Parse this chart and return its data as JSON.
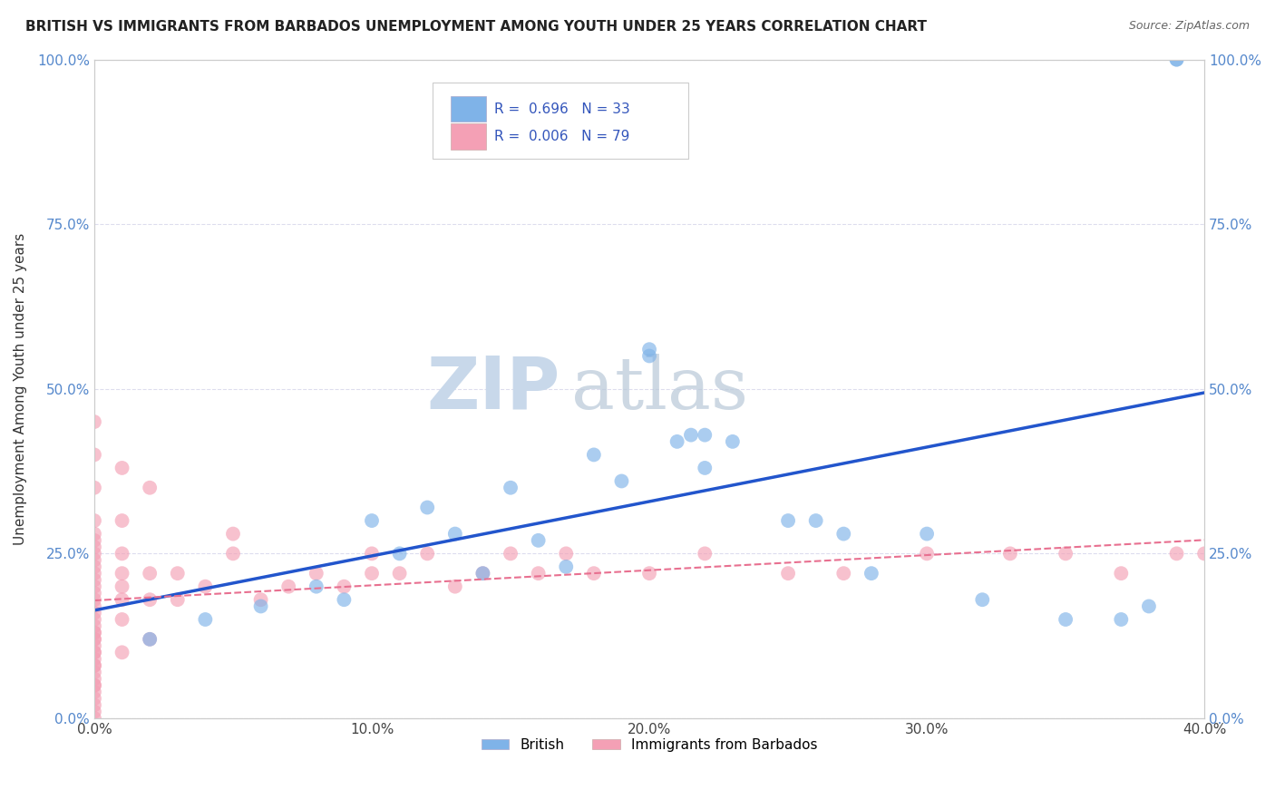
{
  "title": "BRITISH VS IMMIGRANTS FROM BARBADOS UNEMPLOYMENT AMONG YOUTH UNDER 25 YEARS CORRELATION CHART",
  "source": "Source: ZipAtlas.com",
  "ylabel": "Unemployment Among Youth under 25 years",
  "xlim": [
    0.0,
    0.4
  ],
  "ylim": [
    0.0,
    1.0
  ],
  "xtick_labels": [
    "0.0%",
    "10.0%",
    "20.0%",
    "30.0%",
    "40.0%"
  ],
  "xtick_values": [
    0.0,
    0.1,
    0.2,
    0.3,
    0.4
  ],
  "ytick_labels": [
    "0.0%",
    "25.0%",
    "50.0%",
    "75.0%",
    "100.0%"
  ],
  "ytick_values": [
    0.0,
    0.25,
    0.5,
    0.75,
    1.0
  ],
  "british_color": "#7FB3E8",
  "barbados_color": "#F4A0B5",
  "british_line_color": "#2255CC",
  "barbados_line_color": "#E87090",
  "legend_british_R": "0.696",
  "legend_british_N": "33",
  "legend_barbados_R": "0.006",
  "legend_barbados_N": "79",
  "watermark_zip": "ZIP",
  "watermark_atlas": "atlas",
  "watermark_color": "#C8D8EA",
  "british_x": [
    0.02,
    0.04,
    0.06,
    0.08,
    0.09,
    0.1,
    0.11,
    0.12,
    0.13,
    0.14,
    0.15,
    0.16,
    0.17,
    0.18,
    0.19,
    0.2,
    0.21,
    0.22,
    0.23,
    0.25,
    0.26,
    0.27,
    0.28,
    0.3,
    0.32,
    0.35,
    0.37,
    0.38,
    0.39,
    0.2,
    0.22,
    0.215,
    0.39
  ],
  "british_y": [
    0.12,
    0.15,
    0.17,
    0.2,
    0.18,
    0.3,
    0.25,
    0.32,
    0.28,
    0.22,
    0.35,
    0.27,
    0.23,
    0.4,
    0.36,
    0.55,
    0.42,
    0.38,
    0.42,
    0.3,
    0.3,
    0.28,
    0.22,
    0.28,
    0.18,
    0.15,
    0.15,
    0.17,
    1.0,
    0.56,
    0.43,
    0.43,
    1.0
  ],
  "barbados_x": [
    0.0,
    0.0,
    0.0,
    0.0,
    0.0,
    0.0,
    0.0,
    0.0,
    0.0,
    0.0,
    0.0,
    0.0,
    0.0,
    0.0,
    0.0,
    0.0,
    0.0,
    0.0,
    0.0,
    0.0,
    0.0,
    0.01,
    0.01,
    0.01,
    0.01,
    0.01,
    0.01,
    0.01,
    0.02,
    0.02,
    0.02,
    0.03,
    0.03,
    0.04,
    0.05,
    0.05,
    0.06,
    0.07,
    0.08,
    0.09,
    0.1,
    0.1,
    0.11,
    0.12,
    0.13,
    0.14,
    0.15,
    0.16,
    0.17,
    0.18,
    0.2,
    0.22,
    0.25,
    0.27,
    0.3,
    0.33,
    0.35,
    0.37,
    0.39,
    0.4,
    0.0,
    0.0,
    0.0,
    0.0,
    0.0,
    0.0,
    0.0,
    0.0,
    0.0,
    0.0,
    0.0,
    0.0,
    0.0,
    0.0,
    0.0,
    0.0,
    0.0,
    0.01,
    0.02
  ],
  "barbados_y": [
    0.05,
    0.08,
    0.1,
    0.12,
    0.13,
    0.14,
    0.15,
    0.16,
    0.17,
    0.18,
    0.19,
    0.2,
    0.21,
    0.22,
    0.23,
    0.24,
    0.25,
    0.26,
    0.27,
    0.28,
    0.3,
    0.1,
    0.15,
    0.18,
    0.2,
    0.22,
    0.25,
    0.3,
    0.12,
    0.18,
    0.22,
    0.18,
    0.22,
    0.2,
    0.25,
    0.28,
    0.18,
    0.2,
    0.22,
    0.2,
    0.22,
    0.25,
    0.22,
    0.25,
    0.2,
    0.22,
    0.25,
    0.22,
    0.25,
    0.22,
    0.22,
    0.25,
    0.22,
    0.22,
    0.25,
    0.25,
    0.25,
    0.22,
    0.25,
    0.25,
    0.02,
    0.03,
    0.04,
    0.05,
    0.06,
    0.07,
    0.08,
    0.09,
    0.1,
    0.11,
    0.12,
    0.13,
    0.0,
    0.01,
    0.35,
    0.4,
    0.45,
    0.38,
    0.35
  ],
  "legend_label_british": "British",
  "legend_label_barbados": "Immigrants from Barbados"
}
